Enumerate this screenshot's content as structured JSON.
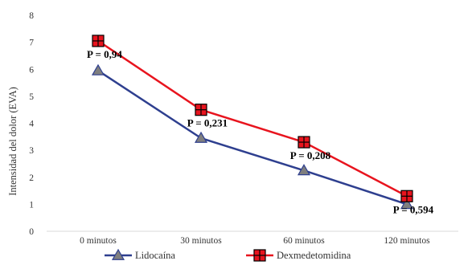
{
  "chart_data": {
    "type": "line",
    "categories": [
      "0 minutos",
      "30 minutos",
      "60 minutos",
      "120 minutos"
    ],
    "series": [
      {
        "name": "Lidocaína",
        "values": [
          5.95,
          3.45,
          2.25,
          1.0
        ],
        "color": "#2e3f8f",
        "marker": "triangle"
      },
      {
        "name": "Dexmedetomidina",
        "values": [
          7.05,
          4.5,
          3.3,
          1.3
        ],
        "color": "#e8141e",
        "marker": "square"
      }
    ],
    "annotations": [
      {
        "category": "0 minutos",
        "text": "P = 0,94"
      },
      {
        "category": "30 minutos",
        "text": "P = 0,231"
      },
      {
        "category": "60 minutos",
        "text": "P = 0,208"
      },
      {
        "category": "120 minutos",
        "text": "P = 0,594"
      }
    ],
    "title": "",
    "xlabel": "",
    "ylabel": "Intensidad del dolor (EVA)",
    "ylim": [
      0,
      8
    ],
    "yticks": [
      "0",
      "1",
      "2",
      "3",
      "4",
      "5",
      "6",
      "7",
      "8"
    ],
    "grid": false,
    "legend_position": "bottom"
  }
}
